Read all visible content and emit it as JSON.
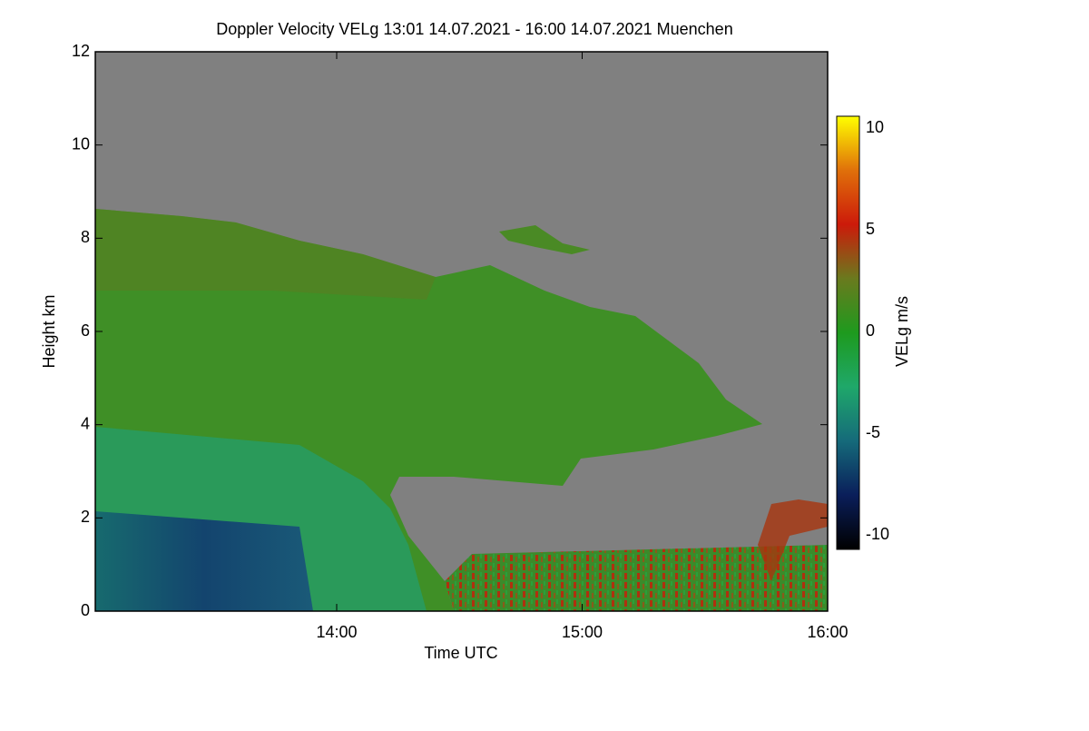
{
  "chart_data": {
    "type": "heatmap",
    "title": "Doppler Velocity VELg   13:01 14.07.2021 - 16:00 14.07.2021 Muenchen",
    "x_label": "Time UTC",
    "y_label": "Height km",
    "colorbar_label": "VELg m/s",
    "xlim": [
      13.0167,
      16.0
    ],
    "xticks": [
      {
        "value": 14,
        "label": "14:00"
      },
      {
        "value": 15,
        "label": "15:00"
      },
      {
        "value": 16,
        "label": "16:00"
      }
    ],
    "ylim": [
      0,
      12
    ],
    "yticks": [
      0,
      2,
      4,
      6,
      8,
      10,
      12
    ],
    "clim": [
      -10.7,
      10.6
    ],
    "cticks": [
      10,
      5,
      0,
      -5,
      -10
    ],
    "colormap": [
      "#000000",
      "#0a1e5a",
      "#156a7a",
      "#1fa86a",
      "#1e9a1e",
      "#6a7a1e",
      "#cc1a0a",
      "#e0700a",
      "#ffff00"
    ],
    "background": "#808080"
  }
}
